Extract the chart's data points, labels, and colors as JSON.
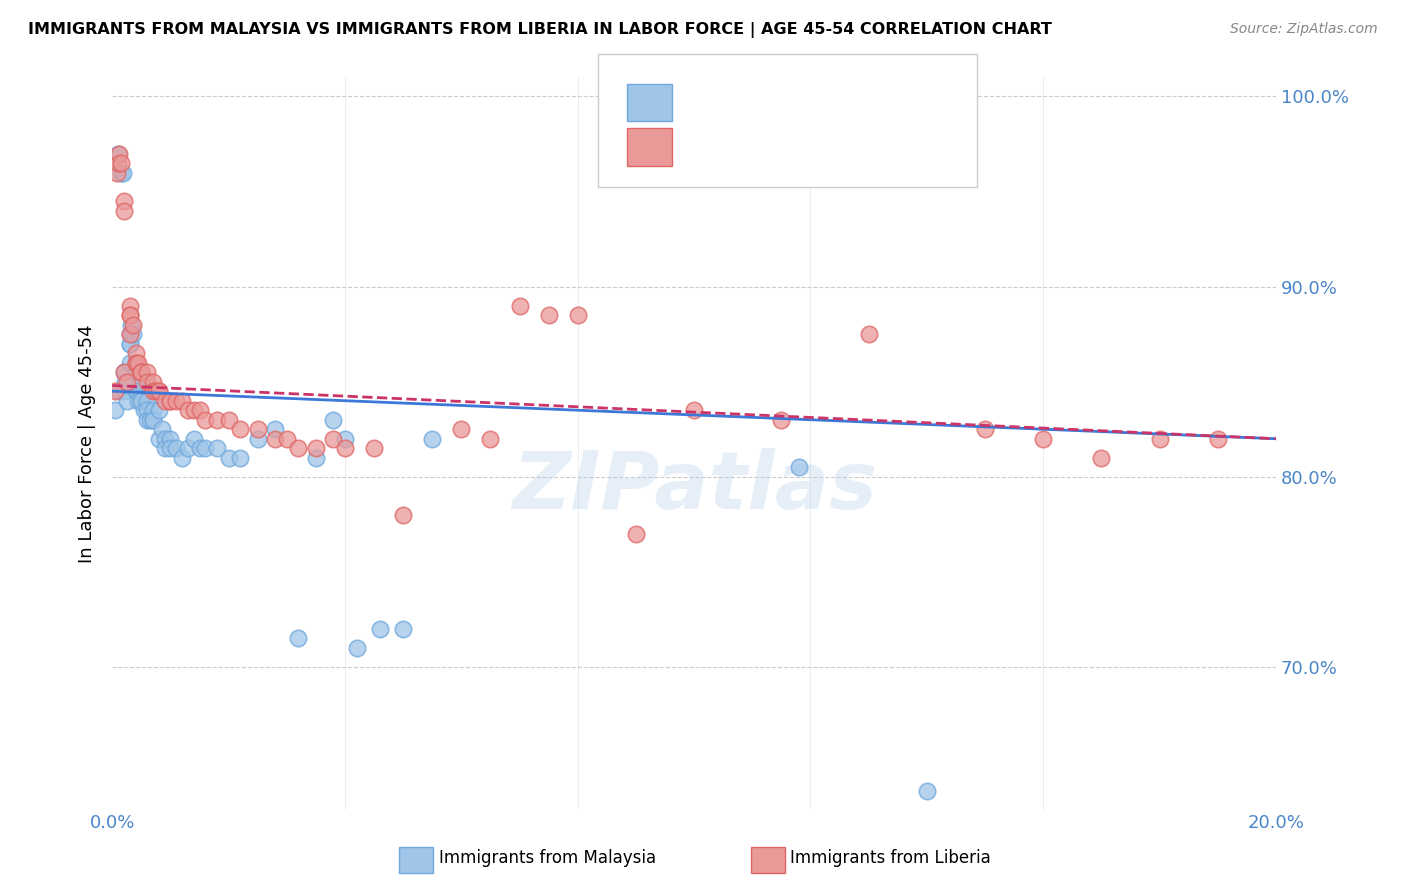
{
  "title": "IMMIGRANTS FROM MALAYSIA VS IMMIGRANTS FROM LIBERIA IN LABOR FORCE | AGE 45-54 CORRELATION CHART",
  "source": "Source: ZipAtlas.com",
  "ylabel": "In Labor Force | Age 45-54",
  "x_min": 0.0,
  "x_max": 0.2,
  "y_min": 0.625,
  "y_max": 1.01,
  "y_ticks": [
    0.7,
    0.8,
    0.9,
    1.0
  ],
  "y_tick_labels": [
    "70.0%",
    "80.0%",
    "90.0%",
    "100.0%"
  ],
  "malaysia_color": "#9fc5e8",
  "liberia_color": "#ea9999",
  "malaysia_line_color": "#3c78d8",
  "liberia_line_color": "#cc3366",
  "watermark": "ZIPatlas",
  "malaysia_x": [
    0.0005,
    0.001,
    0.0012,
    0.0015,
    0.0018,
    0.002,
    0.002,
    0.0022,
    0.0025,
    0.003,
    0.003,
    0.003,
    0.003,
    0.0032,
    0.0035,
    0.004,
    0.004,
    0.004,
    0.0042,
    0.0045,
    0.005,
    0.005,
    0.005,
    0.005,
    0.0055,
    0.006,
    0.006,
    0.006,
    0.0065,
    0.007,
    0.007,
    0.007,
    0.008,
    0.008,
    0.0085,
    0.009,
    0.009,
    0.01,
    0.01,
    0.011,
    0.012,
    0.013,
    0.014,
    0.015,
    0.016,
    0.018,
    0.02,
    0.022,
    0.025,
    0.028,
    0.032,
    0.035,
    0.038,
    0.04,
    0.042,
    0.046,
    0.05,
    0.055,
    0.118,
    0.14
  ],
  "malaysia_y": [
    0.835,
    0.97,
    0.845,
    0.96,
    0.96,
    0.845,
    0.855,
    0.85,
    0.84,
    0.875,
    0.87,
    0.86,
    0.87,
    0.88,
    0.875,
    0.845,
    0.855,
    0.86,
    0.845,
    0.84,
    0.845,
    0.85,
    0.84,
    0.84,
    0.835,
    0.84,
    0.835,
    0.83,
    0.83,
    0.835,
    0.83,
    0.83,
    0.835,
    0.82,
    0.825,
    0.82,
    0.815,
    0.82,
    0.815,
    0.815,
    0.81,
    0.815,
    0.82,
    0.815,
    0.815,
    0.815,
    0.81,
    0.81,
    0.82,
    0.825,
    0.715,
    0.81,
    0.83,
    0.82,
    0.71,
    0.72,
    0.72,
    0.82,
    0.805,
    0.635
  ],
  "liberia_x": [
    0.0005,
    0.0008,
    0.001,
    0.0012,
    0.0015,
    0.002,
    0.002,
    0.002,
    0.0025,
    0.003,
    0.003,
    0.003,
    0.003,
    0.0035,
    0.004,
    0.004,
    0.004,
    0.0045,
    0.005,
    0.005,
    0.005,
    0.006,
    0.006,
    0.007,
    0.007,
    0.0075,
    0.008,
    0.008,
    0.009,
    0.01,
    0.01,
    0.011,
    0.012,
    0.013,
    0.014,
    0.015,
    0.016,
    0.018,
    0.02,
    0.022,
    0.025,
    0.028,
    0.03,
    0.032,
    0.035,
    0.038,
    0.04,
    0.045,
    0.05,
    0.06,
    0.065,
    0.07,
    0.075,
    0.08,
    0.09,
    0.1,
    0.115,
    0.13,
    0.15,
    0.16,
    0.17,
    0.18,
    0.19
  ],
  "liberia_y": [
    0.845,
    0.96,
    0.965,
    0.97,
    0.965,
    0.855,
    0.945,
    0.94,
    0.85,
    0.89,
    0.885,
    0.885,
    0.875,
    0.88,
    0.86,
    0.865,
    0.86,
    0.86,
    0.855,
    0.855,
    0.855,
    0.855,
    0.85,
    0.85,
    0.845,
    0.845,
    0.845,
    0.845,
    0.84,
    0.84,
    0.84,
    0.84,
    0.84,
    0.835,
    0.835,
    0.835,
    0.83,
    0.83,
    0.83,
    0.825,
    0.825,
    0.82,
    0.82,
    0.815,
    0.815,
    0.82,
    0.815,
    0.815,
    0.78,
    0.825,
    0.82,
    0.89,
    0.885,
    0.885,
    0.77,
    0.835,
    0.83,
    0.875,
    0.825,
    0.82,
    0.81,
    0.82,
    0.82
  ]
}
